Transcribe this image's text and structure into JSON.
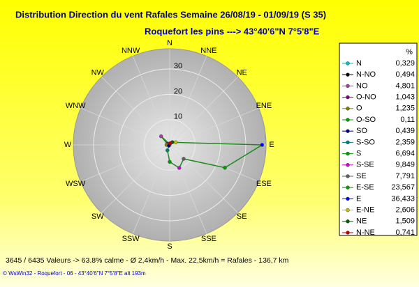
{
  "chart_data": {
    "type": "radar",
    "title": "Distribution Direction du vent Rafales  Semaine 26/08/19 - 01/09/19 (S 35)",
    "subtitle": "Roquefort les pins    --->  43°40'6\"N 7°5'8\"E",
    "legend_header": "%",
    "categories": [
      "N",
      "N-NO",
      "NO",
      "O-NO",
      "O",
      "O-SO",
      "SO",
      "S-SO",
      "S",
      "S-SE",
      "SE",
      "E-SE",
      "E",
      "E-NE",
      "NE",
      "N-NE"
    ],
    "values": [
      0.329,
      0.494,
      4.801,
      1.043,
      1.235,
      0.11,
      0.439,
      2.359,
      6.694,
      9.849,
      7.791,
      23.567,
      36.433,
      2.606,
      1.509,
      0.741
    ],
    "value_labels": [
      "0,329",
      "0,494",
      "4,801",
      "1,043",
      "1,235",
      "0,11",
      "0,439",
      "2,359",
      "6,694",
      "9,849",
      "7,791",
      "23,567",
      "36,433",
      "2,606",
      "1,509",
      "0,741"
    ],
    "marker_colors": [
      "#00c0c0",
      "#000000",
      "#a040a0",
      "#800080",
      "#808000",
      "#00a000",
      "#000080",
      "#008080",
      "#00a000",
      "#d000d0",
      "#606060",
      "#00a000",
      "#0000ff",
      "#c0c000",
      "#006000",
      "#c00000"
    ],
    "line_color": "#1a8a1a",
    "compass_labels": [
      "N",
      "NNE",
      "NE",
      "ENE",
      "E",
      "ESE",
      "SE",
      "SSE",
      "S",
      "SSW",
      "SW",
      "WSW",
      "W",
      "WNW",
      "NW",
      "NNW"
    ],
    "rlim": [
      0,
      38
    ],
    "rticks": [
      10,
      20,
      30
    ],
    "footer": "3645 / 6435 Valeurs  -> 63.8% calme   -   Ø 2,4km/h   -   Max. 22,5km/h = Rafales   -    136,7 km",
    "credit": "© WsWin32  -  Roquefort - 06  -  43°40'6\"N 7°5'8\"E alt 193m"
  }
}
